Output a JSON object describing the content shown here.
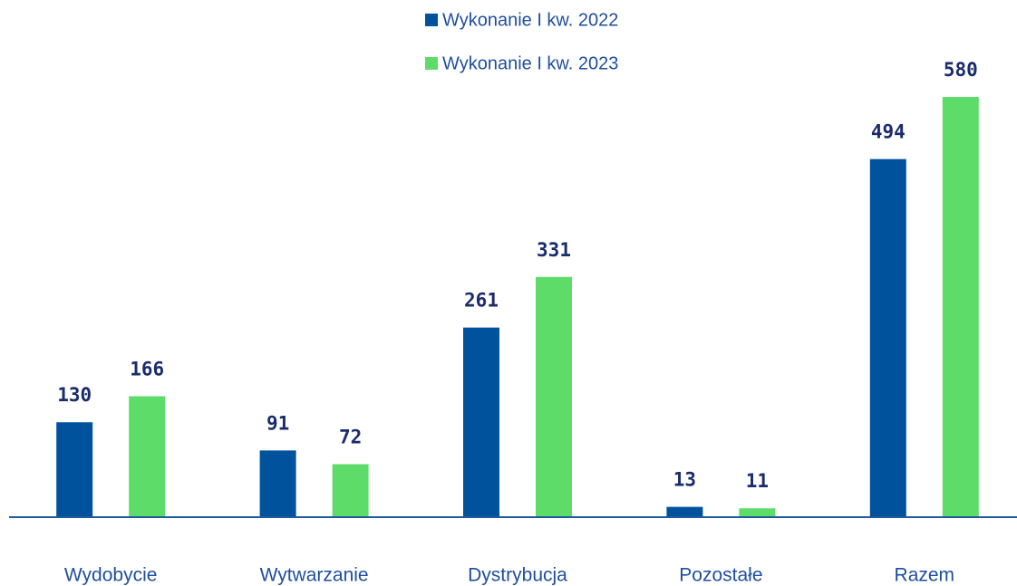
{
  "chart_data": {
    "type": "bar",
    "categories": [
      "Wydobycie",
      "Wytwarzanie",
      "Dystrybucja",
      "Pozostałe",
      "Razem"
    ],
    "series": [
      {
        "name": "Wykonanie I kw. 2022",
        "color": "#00529c",
        "values": [
          130,
          91,
          261,
          13,
          494
        ]
      },
      {
        "name": "Wykonanie I kw. 2023",
        "color": "#5ddc6a",
        "values": [
          166,
          72,
          331,
          11,
          580
        ]
      }
    ]
  }
}
